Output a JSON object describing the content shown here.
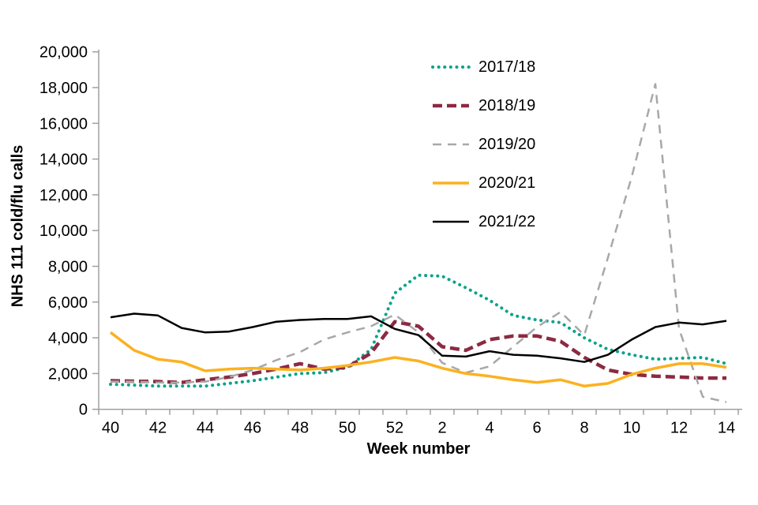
{
  "page": {
    "background": "#ffffff"
  },
  "chart_data": {
    "type": "line",
    "title": "",
    "xlabel": "Week number",
    "ylabel": "NHS 111 cold/flu calls",
    "categories": [
      "40",
      "41",
      "42",
      "43",
      "44",
      "45",
      "46",
      "47",
      "48",
      "49",
      "50",
      "51",
      "52",
      "1",
      "2",
      "3",
      "4",
      "5",
      "6",
      "7",
      "8",
      "9",
      "10",
      "11",
      "12",
      "13",
      "14"
    ],
    "xtick_label_every": 2,
    "ylim": [
      0,
      20000
    ],
    "ytick_interval": 2000,
    "grid": false,
    "legend_position": "inside-top-right",
    "axis_color": "#a0a0a0",
    "text_color": "#000000",
    "series": [
      {
        "name": "2017/18",
        "color": "#0da28a",
        "style": "dotted",
        "width": 4,
        "values": [
          1400,
          1350,
          1300,
          1300,
          1300,
          1450,
          1600,
          1800,
          2000,
          2050,
          2350,
          3350,
          6500,
          7500,
          7450,
          6800,
          6100,
          5250,
          5000,
          4850,
          4000,
          3350,
          3050,
          2800,
          2850,
          2900,
          2550
        ]
      },
      {
        "name": "2018/19",
        "color": "#8c2a42",
        "style": "dashed",
        "width": 4.5,
        "values": [
          1600,
          1570,
          1550,
          1500,
          1650,
          1800,
          2000,
          2250,
          2550,
          2250,
          2350,
          3150,
          4900,
          4650,
          3500,
          3300,
          3900,
          4100,
          4100,
          3800,
          2900,
          2200,
          1950,
          1850,
          1800,
          1750,
          1750
        ]
      },
      {
        "name": "2019/20",
        "color": "#a8a8a8",
        "style": "dashed-thin",
        "width": 2.5,
        "values": [
          1550,
          1550,
          1500,
          1500,
          1550,
          1800,
          2200,
          2750,
          3200,
          3900,
          4300,
          4650,
          5300,
          4300,
          2600,
          2050,
          2400,
          3500,
          4600,
          5450,
          4150,
          8500,
          13000,
          18200,
          4500,
          700,
          400
        ]
      },
      {
        "name": "2020/21",
        "color": "#fcb120",
        "style": "solid",
        "width": 3.5,
        "values": [
          4300,
          3300,
          2800,
          2650,
          2150,
          2250,
          2300,
          2250,
          2200,
          2300,
          2450,
          2650,
          2900,
          2700,
          2300,
          2000,
          1850,
          1650,
          1500,
          1650,
          1300,
          1450,
          1950,
          2300,
          2550,
          2550,
          2350
        ]
      },
      {
        "name": "2021/22",
        "color": "#000000",
        "style": "solid",
        "width": 2.5,
        "values": [
          5150,
          5350,
          5250,
          4550,
          4300,
          4350,
          4600,
          4900,
          5000,
          5050,
          5050,
          5200,
          4500,
          4150,
          3000,
          2950,
          3250,
          3050,
          3000,
          2850,
          2650,
          3050,
          3900,
          4600,
          4850,
          4750,
          4950
        ]
      }
    ]
  }
}
